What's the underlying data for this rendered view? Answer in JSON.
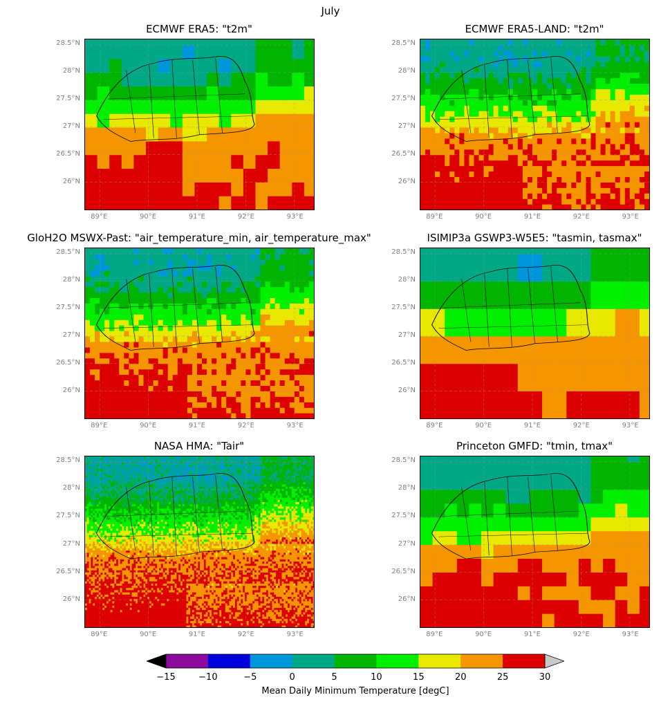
{
  "figure": {
    "title": "July"
  },
  "panels": [
    {
      "id": "era5",
      "title": "ECMWF ERA5: \"t2m\"",
      "style": "coarse"
    },
    {
      "id": "era5-land",
      "title": "ECMWF ERA5-LAND: \"t2m\"",
      "style": "medium"
    },
    {
      "id": "mswx",
      "title": "GloH2O MSWX-Past: \"air_temperature_min, air_temperature_max\"",
      "style": "medium"
    },
    {
      "id": "isimip",
      "title": "ISIMIP3a GSWP3-W5E5: \"tasmin, tasmax\"",
      "style": "verycoarse"
    },
    {
      "id": "nasa-hma",
      "title": "NASA HMA: \"Tair\"",
      "style": "fine"
    },
    {
      "id": "gmfd",
      "title": "Princeton GMFD: \"tmin, tmax\"",
      "style": "coarse"
    }
  ],
  "axes": {
    "lat_ticks": [
      "28.5°N",
      "28°N",
      "27.5°N",
      "27°N",
      "26.5°N",
      "26°N"
    ],
    "lon_ticks": [
      "89°E",
      "90°E",
      "91°E",
      "92°E",
      "93°E"
    ]
  },
  "colorbar": {
    "label": "Mean Daily Minimum Temperature [degC]",
    "tick_labels": [
      "−15",
      "−10",
      "−5",
      "0",
      "5",
      "10",
      "15",
      "20",
      "25",
      "30"
    ],
    "bins": [
      {
        "range": "-15 to -10",
        "color": "#8c0a9c"
      },
      {
        "range": "-10 to -5",
        "color": "#0000dc"
      },
      {
        "range": "-5 to 0",
        "color": "#0096dc"
      },
      {
        "range": "0 to 5",
        "color": "#00a886"
      },
      {
        "range": "5 to 10",
        "color": "#00b400"
      },
      {
        "range": "10 to 15",
        "color": "#00f000"
      },
      {
        "range": "15 to 20",
        "color": "#e8e800"
      },
      {
        "range": "20 to 25",
        "color": "#f59600"
      },
      {
        "range": "25 to 30",
        "color": "#dc0000"
      }
    ],
    "under_color": "#000000",
    "over_color": "#c8c8c8",
    "extend": "both"
  }
}
